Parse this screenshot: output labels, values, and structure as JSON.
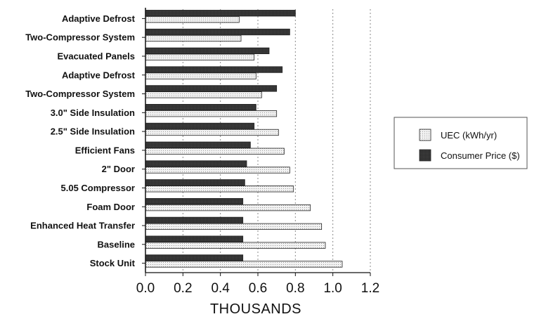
{
  "chart_data": {
    "type": "bar",
    "orientation": "horizontal",
    "categories": [
      "Adaptive Defrost",
      "Two-Compressor System",
      "Evacuated Panels",
      "Adaptive Defrost",
      "Two-Compressor System",
      "3.0\" Side Insulation",
      "2.5\" Side Insulation",
      "Efficient Fans",
      "2\" Door",
      "5.05 Compressor",
      "Foam Door",
      "Enhanced Heat Transfer",
      "Baseline",
      "Stock Unit"
    ],
    "series": [
      {
        "name": "Consumer Price ($)",
        "color": "#333333",
        "values": [
          0.8,
          0.77,
          0.66,
          0.73,
          0.7,
          0.59,
          0.58,
          0.56,
          0.54,
          0.53,
          0.52,
          0.52,
          0.52,
          0.52
        ]
      },
      {
        "name": "UEC (kWh/yr)",
        "color": "#ececec",
        "values": [
          0.5,
          0.51,
          0.58,
          0.59,
          0.62,
          0.7,
          0.71,
          0.74,
          0.77,
          0.79,
          0.88,
          0.94,
          0.96,
          1.05
        ]
      }
    ],
    "xlabel": "THOUSANDS",
    "ylabel": "",
    "title": "",
    "xlim": [
      0,
      1.2
    ],
    "xticks": [
      "0.0",
      "0.2",
      "0.4",
      "0.6",
      "0.8",
      "1.0",
      "1.2"
    ],
    "grid": "vertical dashed",
    "legend_position": "right"
  }
}
